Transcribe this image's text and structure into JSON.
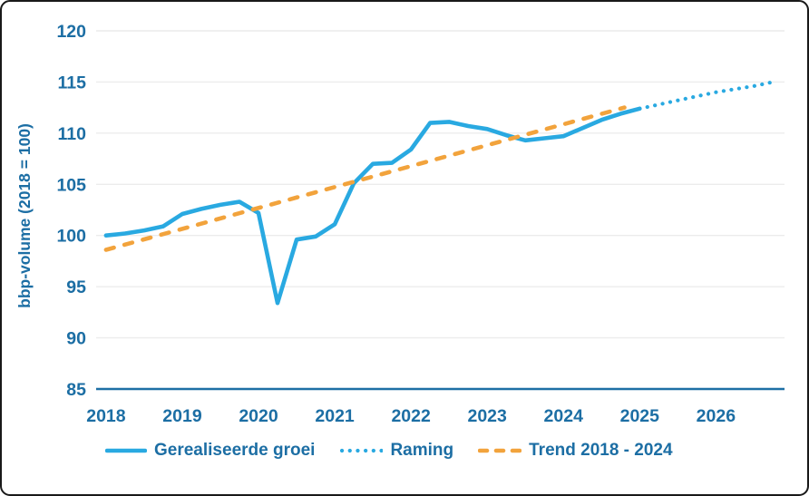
{
  "frame": {
    "background": "#ffffff",
    "border_color": "#191919"
  },
  "colors": {
    "axis_text": "#1C6EA4",
    "baseline": "#1D6FA5",
    "gridline": "#ECECEC",
    "line_blue": "#29A9E1",
    "trend_orange": "#F2A33C"
  },
  "chart_data": {
    "type": "line",
    "title": "",
    "xlabel": "",
    "ylabel": "bbp-volume (2018 = 100)",
    "ylim": [
      85,
      120
    ],
    "xlim": [
      2017.87,
      2026.9
    ],
    "yticks": [
      85,
      90,
      95,
      100,
      105,
      110,
      115,
      120
    ],
    "xticks": [
      2018,
      2019,
      2020,
      2021,
      2022,
      2023,
      2024,
      2025,
      2026
    ],
    "grid": "horizontal",
    "legend_position": "bottom",
    "series": [
      {
        "name": "Gerealiseerde groei",
        "style": "solid",
        "color": "#29A9E1",
        "x": [
          2018.0,
          2018.25,
          2018.5,
          2018.75,
          2019.0,
          2019.25,
          2019.5,
          2019.75,
          2020.0,
          2020.25,
          2020.5,
          2020.75,
          2021.0,
          2021.25,
          2021.5,
          2021.75,
          2022.0,
          2022.25,
          2022.5,
          2022.75,
          2023.0,
          2023.25,
          2023.5,
          2023.75,
          2024.0,
          2024.25,
          2024.5,
          2024.75,
          2025.0
        ],
        "values": [
          100.0,
          100.2,
          100.5,
          100.9,
          102.1,
          102.6,
          103.0,
          103.3,
          102.2,
          93.4,
          99.6,
          99.9,
          101.1,
          105.1,
          107.0,
          107.1,
          108.4,
          111.0,
          111.1,
          110.7,
          110.4,
          109.8,
          109.3,
          109.5,
          109.7,
          110.5,
          111.3,
          111.9,
          112.4
        ]
      },
      {
        "name": "Raming",
        "style": "dotted",
        "color": "#29A9E1",
        "x": [
          2025.0,
          2025.25,
          2025.5,
          2025.75,
          2026.0,
          2026.25,
          2026.5,
          2026.75
        ],
        "values": [
          112.4,
          112.8,
          113.2,
          113.6,
          114.0,
          114.3,
          114.6,
          115.0
        ]
      },
      {
        "name": "Trend 2018 - 2024",
        "style": "dashed",
        "color": "#F2A33C",
        "x": [
          2018.0,
          2024.8
        ],
        "values": [
          98.6,
          112.5
        ]
      }
    ]
  }
}
